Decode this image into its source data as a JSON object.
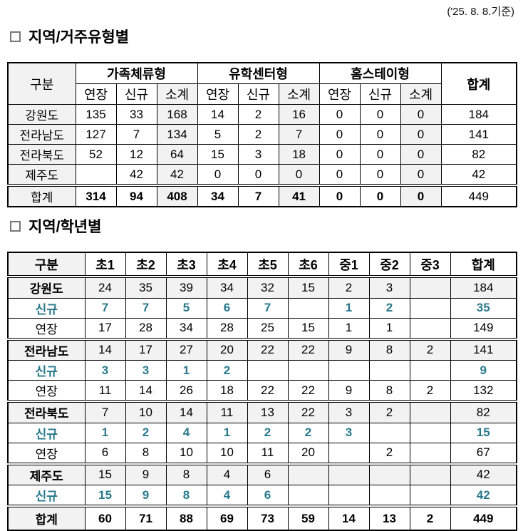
{
  "page": {
    "date_note": "('25. 8. 8.기준)"
  },
  "colors": {
    "accent_teal": "#27788C",
    "cell_gray": "#F2F2F2"
  },
  "section1": {
    "title": "지역/거주유형별",
    "table": {
      "corner_label": "구분",
      "total_col_label": "합계",
      "group_headers": [
        "가족체류형",
        "유학센터형",
        "홈스테이형"
      ],
      "sub_headers": [
        "연장",
        "신규",
        "소계"
      ],
      "rows": [
        {
          "label": "강원도",
          "values": [
            "135",
            "33",
            "168",
            "14",
            "2",
            "16",
            "0",
            "0",
            "0"
          ],
          "total": "184"
        },
        {
          "label": "전라남도",
          "values": [
            "127",
            "7",
            "134",
            "5",
            "2",
            "7",
            "0",
            "0",
            "0"
          ],
          "total": "141"
        },
        {
          "label": "전라북도",
          "values": [
            "52",
            "12",
            "64",
            "15",
            "3",
            "18",
            "0",
            "0",
            "0"
          ],
          "total": "82"
        },
        {
          "label": "제주도",
          "values": [
            "",
            "42",
            "42",
            "0",
            "0",
            "0",
            "0",
            "0",
            "0"
          ],
          "total": "42"
        }
      ],
      "total_row": {
        "label": "합계",
        "values": [
          "314",
          "94",
          "408",
          "34",
          "7",
          "41",
          "0",
          "0",
          "0"
        ],
        "total": "449"
      }
    }
  },
  "section2": {
    "title": "지역/학년별",
    "table": {
      "corner_label": "구분",
      "total_col_label": "합계",
      "grade_headers": [
        "초1",
        "초2",
        "초3",
        "초4",
        "초5",
        "초6",
        "중1",
        "중2",
        "중3"
      ],
      "rows": [
        {
          "label": "강원도",
          "type": "region",
          "values": [
            "24",
            "35",
            "39",
            "34",
            "32",
            "15",
            "2",
            "3",
            ""
          ],
          "total": "184"
        },
        {
          "label": "신규",
          "type": "new",
          "values": [
            "7",
            "7",
            "5",
            "6",
            "7",
            "",
            "1",
            "2",
            ""
          ],
          "total": "35"
        },
        {
          "label": "연장",
          "type": "extend",
          "values": [
            "17",
            "28",
            "34",
            "28",
            "25",
            "15",
            "1",
            "1",
            ""
          ],
          "total": "149"
        },
        {
          "label": "전라남도",
          "type": "region",
          "values": [
            "14",
            "17",
            "27",
            "20",
            "22",
            "22",
            "9",
            "8",
            "2"
          ],
          "total": "141"
        },
        {
          "label": "신규",
          "type": "new",
          "values": [
            "3",
            "3",
            "1",
            "2",
            "",
            "",
            "",
            "",
            ""
          ],
          "total": "9"
        },
        {
          "label": "연장",
          "type": "extend",
          "values": [
            "11",
            "14",
            "26",
            "18",
            "22",
            "22",
            "9",
            "8",
            "2"
          ],
          "total": "132"
        },
        {
          "label": "전라북도",
          "type": "region",
          "values": [
            "7",
            "10",
            "14",
            "11",
            "13",
            "22",
            "3",
            "2",
            ""
          ],
          "total": "82"
        },
        {
          "label": "신규",
          "type": "new",
          "values": [
            "1",
            "2",
            "4",
            "1",
            "2",
            "2",
            "3",
            "",
            ""
          ],
          "total": "15"
        },
        {
          "label": "연장",
          "type": "extend",
          "values": [
            "6",
            "8",
            "10",
            "10",
            "11",
            "20",
            "",
            "2",
            ""
          ],
          "total": "67"
        },
        {
          "label": "제주도",
          "type": "region",
          "values": [
            "15",
            "9",
            "8",
            "4",
            "6",
            "",
            "",
            "",
            ""
          ],
          "total": "42"
        },
        {
          "label": "신규",
          "type": "new",
          "values": [
            "15",
            "9",
            "8",
            "4",
            "6",
            "",
            "",
            "",
            ""
          ],
          "total": "42"
        },
        {
          "label": "합계",
          "type": "total",
          "values": [
            "60",
            "71",
            "88",
            "69",
            "73",
            "59",
            "14",
            "13",
            "2"
          ],
          "total": "449"
        }
      ]
    }
  }
}
